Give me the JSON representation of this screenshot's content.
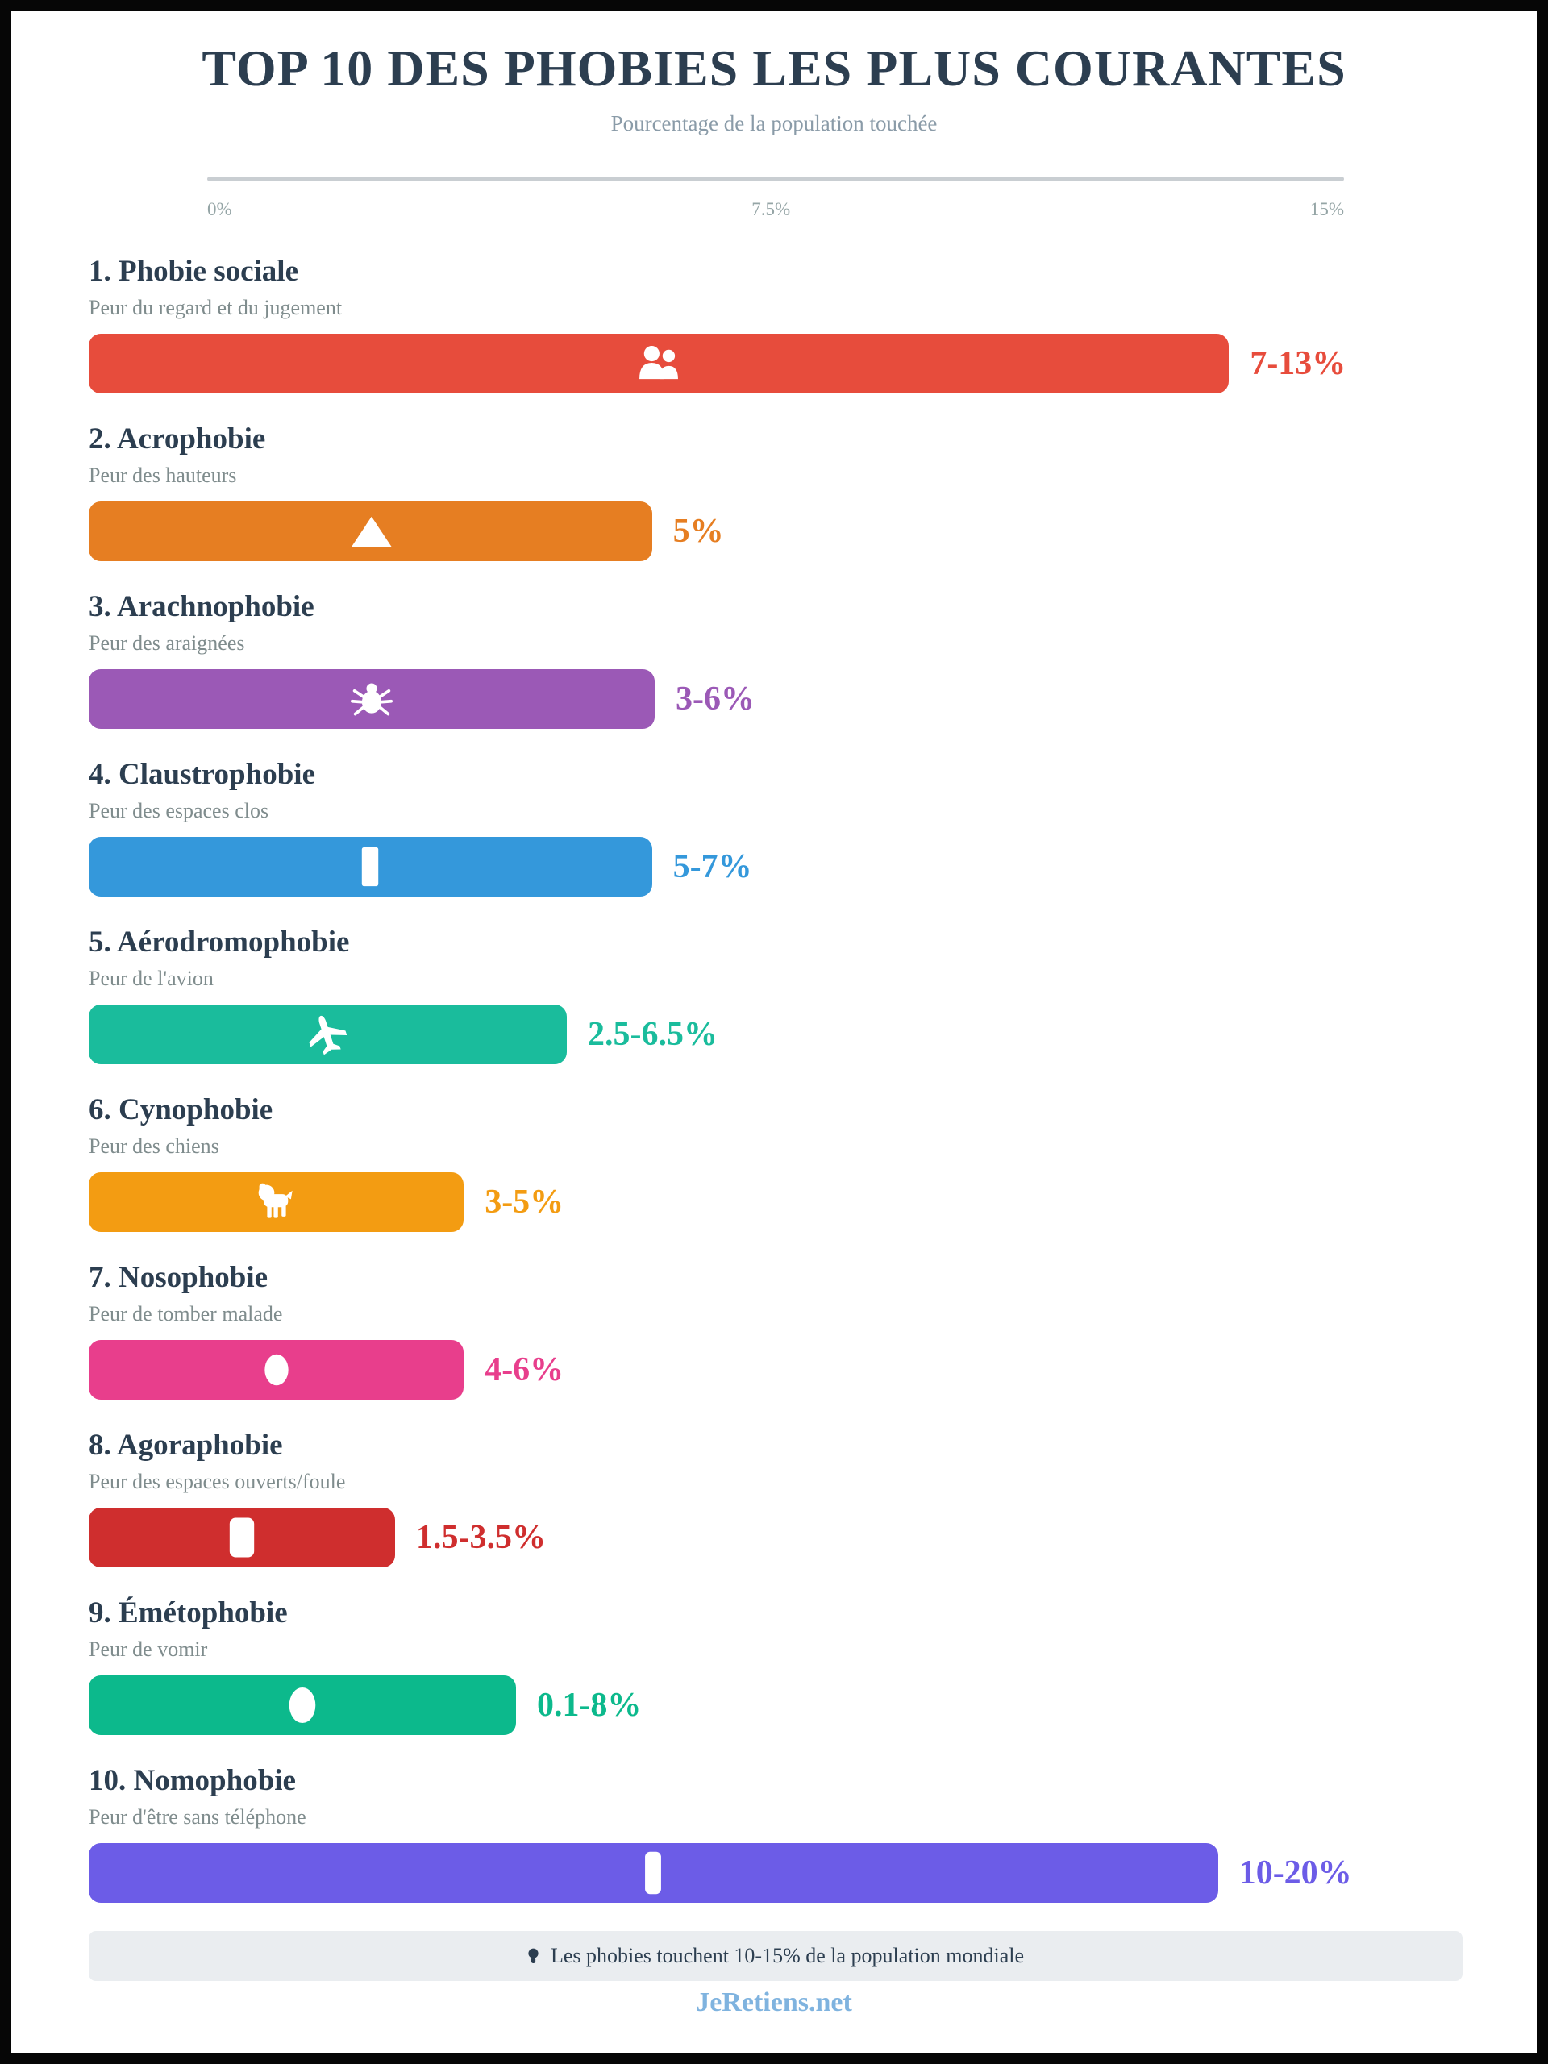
{
  "header": {
    "title": "TOP 10 DES PHOBIES LES PLUS COURANTES",
    "subtitle": "Pourcentage de la population touchée"
  },
  "chart_data": {
    "type": "bar",
    "title": "TOP 10 DES PHOBIES LES PLUS COURANTES",
    "xlabel": "Pourcentage de la population touchée",
    "xlim": [
      0,
      15
    ],
    "axis_ticks": [
      "0%",
      "7.5%",
      "15%"
    ],
    "grid": false,
    "legend": false,
    "items": [
      {
        "rank": 1,
        "label": "1. Phobie sociale",
        "description": "Peur du regard et du jugement",
        "value_label": "7-13%",
        "range_pct": [
          7,
          13
        ],
        "color": "#E74C3C",
        "icon": "two-people",
        "bar_width_pct": 83.0
      },
      {
        "rank": 2,
        "label": "2. Acrophobie",
        "description": "Peur des hauteurs",
        "value_label": "5%",
        "range_pct": [
          5,
          5
        ],
        "color": "#E67E22",
        "icon": "mountain",
        "bar_width_pct": 41.0
      },
      {
        "rank": 3,
        "label": "3. Arachnophobie",
        "description": "Peur des araignées",
        "value_label": "3-6%",
        "range_pct": [
          3,
          6
        ],
        "color": "#9B59B6",
        "icon": "spider",
        "bar_width_pct": 41.2
      },
      {
        "rank": 4,
        "label": "4. Claustrophobie",
        "description": "Peur des espaces clos",
        "value_label": "5-7%",
        "range_pct": [
          5,
          7
        ],
        "color": "#3498DB",
        "icon": "door",
        "bar_width_pct": 41.0
      },
      {
        "rank": 5,
        "label": "5. Aérodromophobie",
        "description": "Peur de l'avion",
        "value_label": "2.5-6.5%",
        "range_pct": [
          2.5,
          6.5
        ],
        "color": "#1ABC9C",
        "icon": "airplane",
        "bar_width_pct": 34.8
      },
      {
        "rank": 6,
        "label": "6. Cynophobie",
        "description": "Peur des chiens",
        "value_label": "3-5%",
        "range_pct": [
          3,
          5
        ],
        "color": "#F39C12",
        "icon": "dog",
        "bar_width_pct": 27.3
      },
      {
        "rank": 7,
        "label": "7. Nosophobie",
        "description": "Peur de tomber malade",
        "value_label": "4-6%",
        "range_pct": [
          4,
          6
        ],
        "color": "#E83E8C",
        "icon": "germ",
        "bar_width_pct": 27.3
      },
      {
        "rank": 8,
        "label": "8. Agoraphobie",
        "description": "Peur des espaces ouverts/foule",
        "value_label": "1.5-3.5%",
        "range_pct": [
          1.5,
          3.5
        ],
        "color": "#CF2E2E",
        "icon": "open-space",
        "bar_width_pct": 22.3
      },
      {
        "rank": 9,
        "label": "9. Émétophobie",
        "description": "Peur de vomir",
        "value_label": "0.1-8%",
        "range_pct": [
          0.1,
          8
        ],
        "color": "#0CB98C",
        "icon": "nausea",
        "bar_width_pct": 31.1
      },
      {
        "rank": 10,
        "label": "10. Nomophobie",
        "description": "Peur d'être sans téléphone",
        "value_label": "10-20%",
        "range_pct": [
          10,
          20
        ],
        "color": "#6C5CE7",
        "icon": "smartphone",
        "bar_width_pct": 82.2
      }
    ]
  },
  "footer": {
    "note": "Les phobies touchent 10-15% de la population mondiale",
    "credit": "JeRetiens.net"
  }
}
